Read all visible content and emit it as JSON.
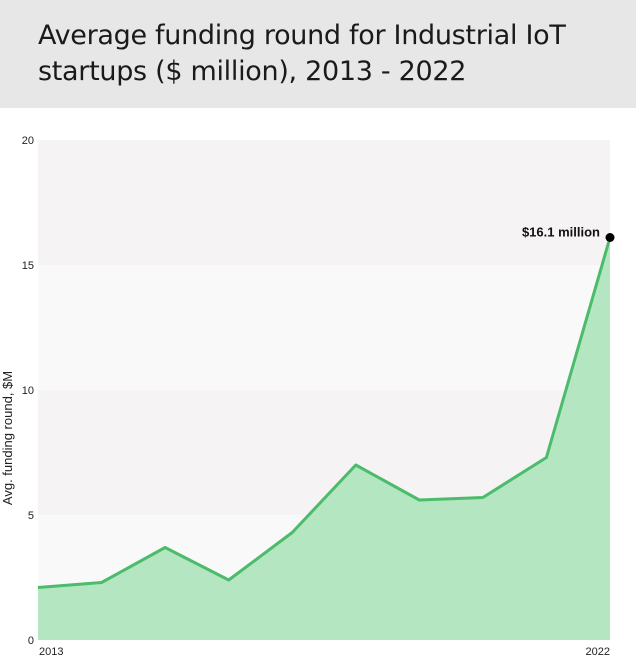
{
  "header": {
    "title": "Average funding round for Industrial IoT startups ($ million), 2013 - 2022"
  },
  "colors": {
    "line": "#4cbb6c",
    "area": "#b4e6c1",
    "band_dark": "#f5f3f3",
    "band_light": "#faf9f9",
    "point": "#000000"
  },
  "chart_data": {
    "type": "area",
    "title": "Average funding round for Industrial IoT startups ($ million), 2013 - 2022",
    "xlabel": "",
    "ylabel": "Avg. funding round, $M",
    "x": [
      2013,
      2014,
      2015,
      2016,
      2017,
      2018,
      2019,
      2020,
      2021,
      2022
    ],
    "series": [
      {
        "name": "Avg. funding round",
        "values": [
          2.1,
          2.3,
          3.7,
          2.4,
          4.3,
          7.0,
          5.6,
          5.7,
          7.3,
          16.1
        ]
      }
    ],
    "xlim": [
      2013,
      2022
    ],
    "ylim": [
      0,
      20
    ],
    "yticks": [
      0,
      5,
      10,
      15,
      20
    ],
    "xtick_labels": [
      "2013",
      "2022"
    ],
    "annotations": [
      {
        "x": 2022,
        "y": 16.1,
        "text": "$16.1 million"
      }
    ],
    "grid": false
  }
}
